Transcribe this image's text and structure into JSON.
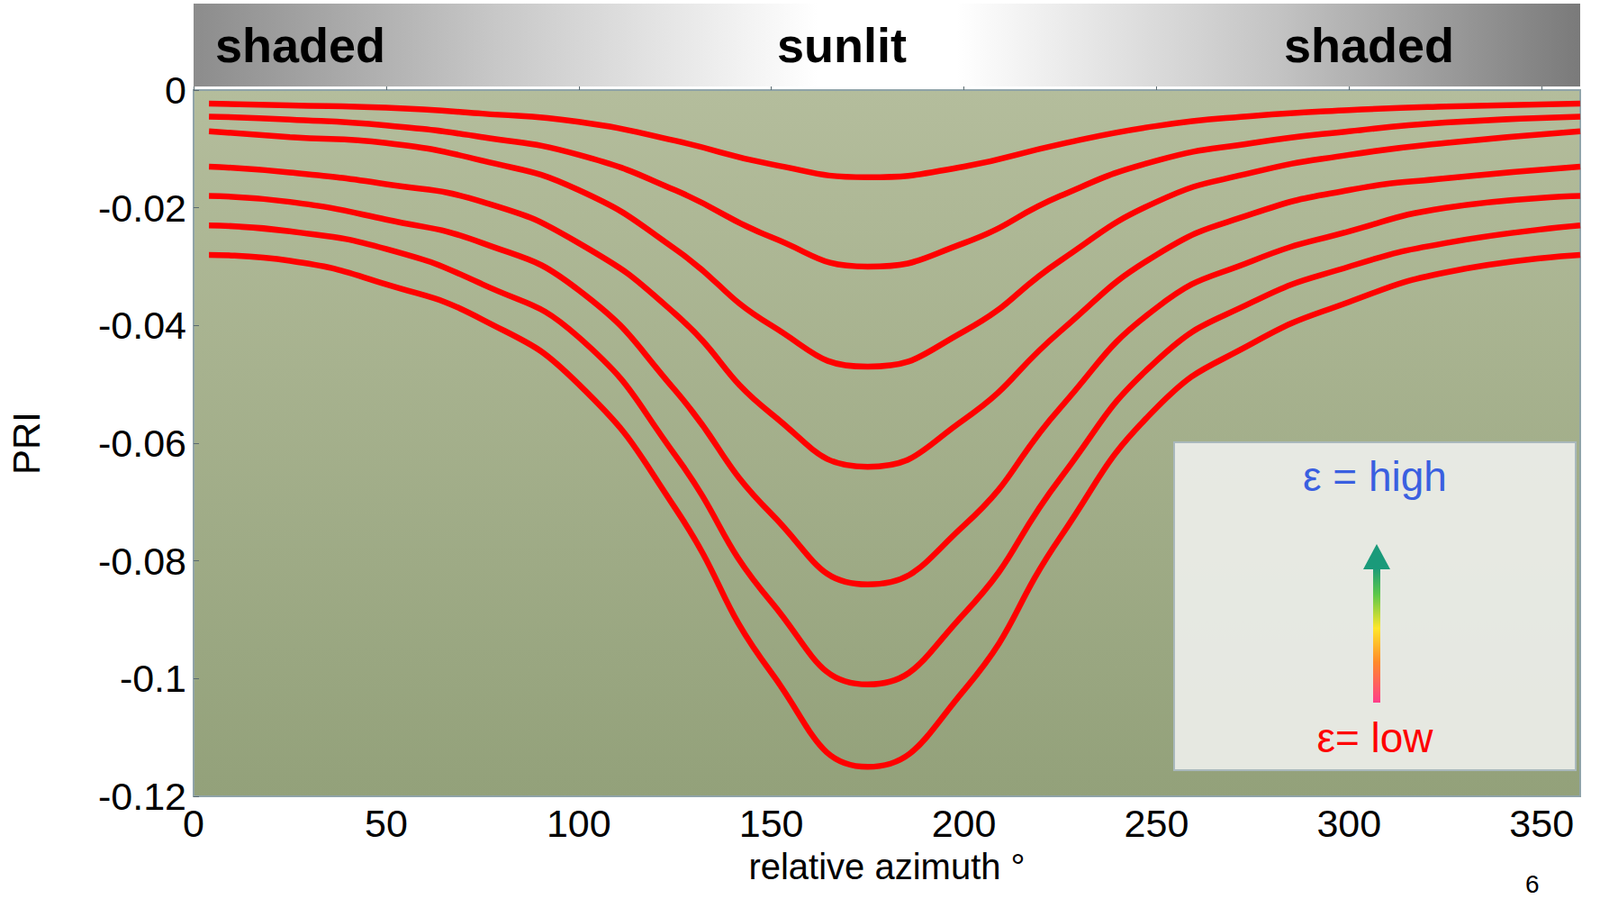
{
  "chart_data": {
    "type": "line",
    "x": [
      4,
      25,
      50,
      75,
      100,
      125,
      150,
      175,
      200,
      225,
      250,
      275,
      300,
      325,
      360
    ],
    "series": [
      {
        "color": "#ff0000",
        "values": [
          -0.0023,
          -0.0026,
          -0.003,
          -0.004,
          -0.0054,
          -0.0086,
          -0.0126,
          -0.0148,
          -0.013,
          -0.0092,
          -0.0061,
          -0.0044,
          -0.0034,
          -0.0028,
          -0.0023
        ]
      },
      {
        "color": "#ff0000",
        "values": [
          -0.0045,
          -0.005,
          -0.006,
          -0.008,
          -0.011,
          -0.017,
          -0.025,
          -0.03,
          -0.026,
          -0.018,
          -0.012,
          -0.009,
          -0.007,
          -0.0055,
          -0.0045
        ]
      },
      {
        "color": "#ff0000",
        "values": [
          -0.007,
          -0.008,
          -0.009,
          -0.012,
          -0.017,
          -0.027,
          -0.04,
          -0.047,
          -0.041,
          -0.029,
          -0.019,
          -0.014,
          -0.011,
          -0.009,
          -0.007
        ]
      },
      {
        "color": "#ff0000",
        "values": [
          -0.013,
          -0.014,
          -0.016,
          -0.019,
          -0.026,
          -0.038,
          -0.055,
          -0.064,
          -0.056,
          -0.041,
          -0.028,
          -0.021,
          -0.017,
          -0.015,
          -0.013
        ]
      },
      {
        "color": "#ff0000",
        "values": [
          -0.018,
          -0.019,
          -0.022,
          -0.026,
          -0.034,
          -0.051,
          -0.072,
          -0.084,
          -0.074,
          -0.054,
          -0.037,
          -0.029,
          -0.024,
          -0.02,
          -0.018
        ]
      },
      {
        "color": "#ff0000",
        "values": [
          -0.023,
          -0.024,
          -0.027,
          -0.033,
          -0.042,
          -0.062,
          -0.087,
          -0.101,
          -0.089,
          -0.066,
          -0.046,
          -0.036,
          -0.03,
          -0.026,
          -0.023
        ]
      },
      {
        "color": "#ff0000",
        "values": [
          -0.028,
          -0.029,
          -0.033,
          -0.039,
          -0.05,
          -0.071,
          -0.099,
          -0.115,
          -0.102,
          -0.076,
          -0.054,
          -0.043,
          -0.036,
          -0.031,
          -0.028
        ]
      }
    ],
    "xlabel": "relative azimuth °",
    "ylabel": "PRI",
    "xlim": [
      0,
      360
    ],
    "xticks": [
      0,
      50,
      100,
      150,
      200,
      250,
      300,
      350
    ],
    "ylim": [
      -0.12,
      0
    ],
    "yticks": [
      -0.12,
      -0.1,
      -0.08,
      -0.06,
      -0.04,
      -0.02,
      0
    ],
    "grid": false,
    "header_labels": [
      "shaded",
      "sunlit",
      "shaded"
    ],
    "inset_labels": {
      "high": "ε = high",
      "low": "ε= low"
    },
    "page_number": "6"
  }
}
